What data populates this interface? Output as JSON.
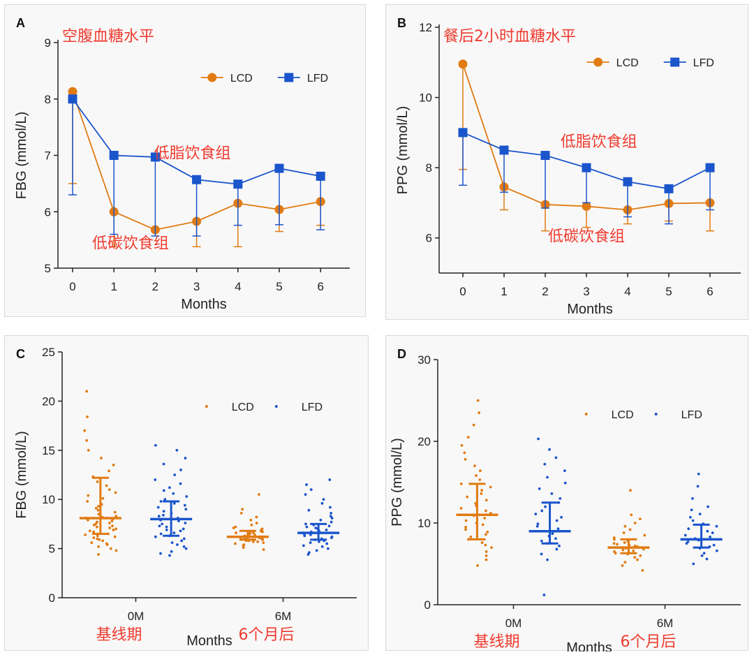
{
  "colors": {
    "lcd": "#e07b12",
    "lfd": "#1a55cc",
    "annotation": "#ee3b2f",
    "axis": "#222222"
  },
  "chart_data": [
    {
      "id": "a",
      "type": "line",
      "panel_label": "A",
      "title": "空腹血糖水平",
      "xlabel": "Months",
      "ylabel": "FBG (mmol/L)",
      "x": [
        0,
        1,
        2,
        3,
        4,
        5,
        6
      ],
      "xticks": [
        "0",
        "1",
        "2",
        "3",
        "4",
        "5",
        "6"
      ],
      "ylim": [
        5,
        9
      ],
      "yticks": [
        5,
        6,
        7,
        8,
        9
      ],
      "legend": [
        "LCD",
        "LFD"
      ],
      "legend_position": "top-right",
      "grid": false,
      "series": [
        {
          "name": "LCD",
          "marker": "circle",
          "values": [
            8.13,
            6.0,
            5.68,
            5.83,
            6.15,
            6.04,
            6.18
          ],
          "error": [
            1.63,
            0.62,
            0.0,
            0.45,
            0.77,
            0.39,
            0.42
          ],
          "error_dir": "down"
        },
        {
          "name": "LFD",
          "marker": "square",
          "values": [
            8.0,
            7.0,
            6.97,
            6.57,
            6.49,
            6.77,
            6.63
          ],
          "error": [
            1.7,
            1.4,
            1.4,
            1.0,
            0.73,
            1.0,
            0.95
          ],
          "error_dir": "down"
        }
      ],
      "annotations": [
        {
          "text": "低脂饮食组",
          "x": 2.9,
          "y": 6.95
        },
        {
          "text": "低碳饮食组",
          "x": 1.4,
          "y": 5.35
        }
      ]
    },
    {
      "id": "b",
      "type": "line",
      "panel_label": "B",
      "title": "餐后2小时血糖水平",
      "xlabel": "Months",
      "ylabel": "PPG (mmol/L)",
      "x": [
        0,
        1,
        2,
        3,
        4,
        5,
        6
      ],
      "xticks": [
        "0",
        "1",
        "2",
        "3",
        "4",
        "5",
        "6"
      ],
      "ylim": [
        5,
        12
      ],
      "yticks": [
        6,
        8,
        10,
        12
      ],
      "legend": [
        "LCD",
        "LFD"
      ],
      "legend_position": "top-right",
      "grid": false,
      "series": [
        {
          "name": "LCD",
          "marker": "circle",
          "values": [
            10.95,
            7.45,
            6.95,
            6.9,
            6.8,
            6.98,
            7.0
          ],
          "error": [
            3.0,
            0.65,
            0.75,
            0.6,
            0.4,
            0.5,
            0.8
          ],
          "error_dir": "down"
        },
        {
          "name": "LFD",
          "marker": "square",
          "values": [
            9.0,
            8.5,
            8.35,
            8.0,
            7.6,
            7.4,
            8.0
          ],
          "error": [
            1.5,
            1.2,
            1.5,
            1.0,
            1.0,
            1.0,
            1.2
          ],
          "error_dir": "down"
        }
      ],
      "annotations": [
        {
          "text": "低脂饮食组",
          "x": 3.3,
          "y": 8.6
        },
        {
          "text": "低碳饮食组",
          "x": 3.0,
          "y": 5.9
        }
      ]
    },
    {
      "id": "c",
      "type": "scatter",
      "panel_label": "C",
      "xlabel": "Months",
      "ylabel": "FBG (mmol/L)",
      "ylim": [
        0,
        25
      ],
      "yticks": [
        0,
        5,
        10,
        15,
        20,
        25
      ],
      "groups": [
        "0M",
        "6M"
      ],
      "group_notes": [
        "基线期",
        "6个月后"
      ],
      "legend": [
        "LCD",
        "LFD"
      ],
      "legend_position": "top-right",
      "grid": false,
      "series": [
        {
          "name": "LCD",
          "groups": [
            {
              "median": 8.1,
              "low": 6.5,
              "high": 12.2,
              "points": [
                4.4,
                4.8,
                5.0,
                5.2,
                5.4,
                5.5,
                5.6,
                5.8,
                5.9,
                6.0,
                6.1,
                6.2,
                6.3,
                6.4,
                6.5,
                6.6,
                6.7,
                6.8,
                6.9,
                7.0,
                7.1,
                7.2,
                7.3,
                7.4,
                7.5,
                7.6,
                7.7,
                7.8,
                7.9,
                8.0,
                8.1,
                8.2,
                8.3,
                8.5,
                8.7,
                8.9,
                9.1,
                9.3,
                9.5,
                9.8,
                10.1,
                10.4,
                10.7,
                11.0,
                11.4,
                11.8,
                12.3,
                12.9,
                13.5,
                14.2,
                15.0,
                16.0,
                17.0,
                18.4,
                21.0
              ]
            },
            {
              "median": 6.2,
              "low": 5.9,
              "high": 6.8,
              "points": [
                4.9,
                5.1,
                5.3,
                5.4,
                5.5,
                5.6,
                5.7,
                5.7,
                5.8,
                5.8,
                5.9,
                5.9,
                6.0,
                6.0,
                6.0,
                6.1,
                6.1,
                6.1,
                6.2,
                6.2,
                6.2,
                6.3,
                6.3,
                6.3,
                6.4,
                6.4,
                6.5,
                6.5,
                6.6,
                6.6,
                6.7,
                6.7,
                6.8,
                6.9,
                7.0,
                7.1,
                7.2,
                7.4,
                7.6,
                7.9,
                8.2,
                8.6,
                9.0,
                10.5
              ]
            }
          ]
        },
        {
          "name": "LFD",
          "groups": [
            {
              "median": 8.0,
              "low": 6.3,
              "high": 9.8,
              "points": [
                4.3,
                4.5,
                4.7,
                5.0,
                5.2,
                5.4,
                5.6,
                5.8,
                6.0,
                6.2,
                6.3,
                6.5,
                6.6,
                6.8,
                6.9,
                7.0,
                7.2,
                7.3,
                7.5,
                7.6,
                7.8,
                7.9,
                8.0,
                8.1,
                8.3,
                8.4,
                8.6,
                8.8,
                9.0,
                9.2,
                9.4,
                9.6,
                9.8,
                10.0,
                10.3,
                10.6,
                10.9,
                11.2,
                11.6,
                12.0,
                12.5,
                13.0,
                13.6,
                14.2,
                15.0,
                15.5
              ]
            },
            {
              "median": 6.6,
              "low": 5.9,
              "high": 7.5,
              "points": [
                4.4,
                4.6,
                4.8,
                5.0,
                5.2,
                5.3,
                5.5,
                5.6,
                5.7,
                5.8,
                5.9,
                6.0,
                6.1,
                6.2,
                6.3,
                6.4,
                6.5,
                6.6,
                6.6,
                6.7,
                6.8,
                6.9,
                7.0,
                7.1,
                7.2,
                7.3,
                7.4,
                7.5,
                7.7,
                7.9,
                8.1,
                8.3,
                8.6,
                8.9,
                9.2,
                9.6,
                10.0,
                10.5,
                11.0,
                11.5,
                12.0
              ]
            }
          ]
        }
      ]
    },
    {
      "id": "d",
      "type": "scatter",
      "panel_label": "D",
      "xlabel": "Months",
      "ylabel": "PPG (mmol/L)",
      "ylim": [
        0,
        30
      ],
      "yticks": [
        0,
        10,
        20,
        30
      ],
      "groups": [
        "0M",
        "6M"
      ],
      "group_notes": [
        "基线期",
        "6个月后"
      ],
      "legend": [
        "LCD",
        "LFD"
      ],
      "legend_position": "top-right",
      "grid": false,
      "series": [
        {
          "name": "LCD",
          "groups": [
            {
              "median": 11.0,
              "low": 8.0,
              "high": 14.8,
              "points": [
                4.8,
                5.5,
                6.0,
                6.5,
                7.0,
                7.3,
                7.6,
                8.0,
                8.3,
                8.6,
                8.9,
                9.2,
                9.5,
                9.8,
                10.0,
                10.3,
                10.6,
                10.9,
                11.2,
                11.5,
                11.8,
                12.1,
                12.4,
                12.8,
                13.2,
                13.6,
                14.0,
                14.4,
                14.8,
                15.3,
                15.8,
                16.4,
                17.0,
                17.8,
                18.6,
                19.5,
                20.5,
                22.0,
                23.5,
                25.0
              ]
            },
            {
              "median": 7.0,
              "low": 6.3,
              "high": 8.0,
              "points": [
                4.2,
                4.8,
                5.2,
                5.5,
                5.8,
                6.0,
                6.2,
                6.3,
                6.5,
                6.6,
                6.7,
                6.8,
                6.9,
                7.0,
                7.0,
                7.1,
                7.2,
                7.3,
                7.4,
                7.5,
                7.6,
                7.8,
                8.0,
                8.2,
                8.5,
                8.8,
                9.2,
                9.6,
                10.0,
                10.5,
                11.0,
                14.0
              ]
            }
          ]
        },
        {
          "name": "LFD",
          "groups": [
            {
              "median": 9.0,
              "low": 7.5,
              "high": 12.5,
              "points": [
                1.2,
                5.5,
                6.2,
                6.8,
                7.2,
                7.5,
                7.8,
                8.1,
                8.4,
                8.7,
                9.0,
                9.3,
                9.6,
                9.9,
                10.3,
                10.7,
                11.1,
                11.5,
                12.0,
                12.5,
                13.0,
                13.6,
                14.2,
                14.9,
                15.6,
                16.4,
                17.2,
                18.0,
                19.0,
                20.3
              ]
            },
            {
              "median": 8.0,
              "low": 7.0,
              "high": 9.8,
              "points": [
                5.0,
                5.6,
                6.0,
                6.3,
                6.6,
                6.9,
                7.1,
                7.3,
                7.5,
                7.7,
                7.9,
                8.1,
                8.3,
                8.5,
                8.8,
                9.0,
                9.3,
                9.6,
                9.9,
                10.3,
                10.7,
                11.1,
                11.6,
                12.0,
                13.0,
                14.5,
                16.0
              ]
            }
          ]
        }
      ]
    }
  ]
}
